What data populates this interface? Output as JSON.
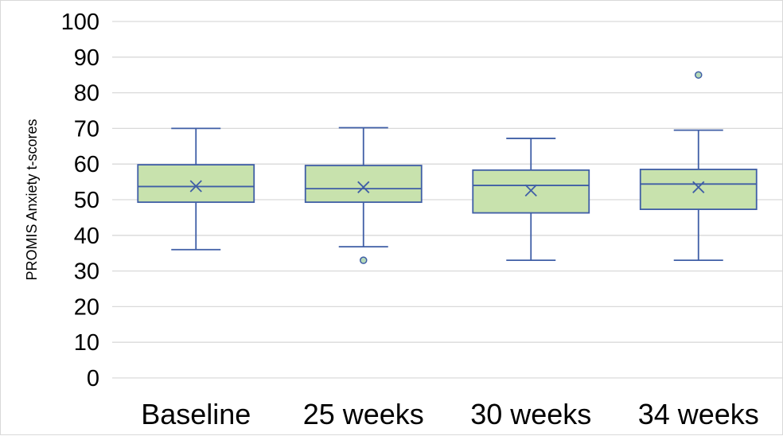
{
  "chart_data": {
    "type": "box",
    "title": "",
    "xlabel": "",
    "ylabel": "PROMIS Anxiety t-scores",
    "ylim": [
      0,
      100
    ],
    "yticks": [
      0,
      10,
      20,
      30,
      40,
      50,
      60,
      70,
      80,
      90,
      100
    ],
    "ytick_labels": [
      "0",
      "10",
      "20",
      "30",
      "40",
      "50",
      "60",
      "70",
      "80",
      "90",
      "100"
    ],
    "grid": "horizontal",
    "legend": "none",
    "categories": [
      "Baseline",
      "25 weeks",
      "30 weeks",
      "34 weeks"
    ],
    "boxes": [
      {
        "category": "Baseline",
        "whisker_low": 36,
        "q1": 49.3,
        "median": 53.7,
        "q3": 59.8,
        "whisker_high": 70,
        "mean": 53.8,
        "outliers": []
      },
      {
        "category": "25 weeks",
        "whisker_low": 36.8,
        "q1": 49.3,
        "median": 53.1,
        "q3": 59.6,
        "whisker_high": 70.2,
        "mean": 53.5,
        "outliers": [
          33
        ]
      },
      {
        "category": "30 weeks",
        "whisker_low": 33,
        "q1": 46.3,
        "median": 54,
        "q3": 58.3,
        "whisker_high": 67.2,
        "mean": 52.6,
        "outliers": []
      },
      {
        "category": "34 weeks",
        "whisker_low": 33,
        "q1": 47.3,
        "median": 54.4,
        "q3": 58.5,
        "whisker_high": 69.5,
        "mean": 53.5,
        "outliers": [
          85
        ]
      }
    ],
    "colors": {
      "box_fill": "#c8e2ad",
      "box_stroke": "#3f5ea6",
      "outlier_fill": "#b5d9b8",
      "grid": "#d9d9d9",
      "axis": "#d9d9d9"
    }
  }
}
